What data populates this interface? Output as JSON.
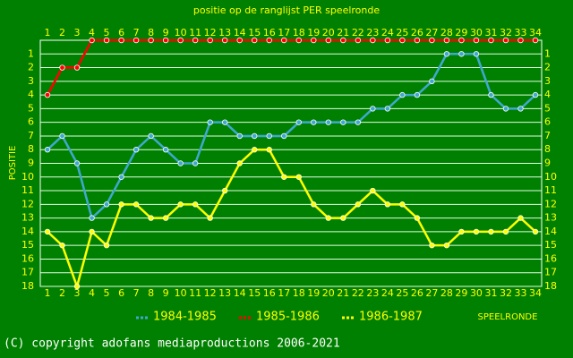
{
  "chart_data": {
    "type": "line",
    "title": "positie op de ranglijst PER speelronde",
    "xlabel": "SPEELRONDE",
    "ylabel": "POSITIE",
    "x": [
      1,
      2,
      3,
      4,
      5,
      6,
      7,
      8,
      9,
      10,
      11,
      12,
      13,
      14,
      15,
      16,
      17,
      18,
      19,
      20,
      21,
      22,
      23,
      24,
      25,
      26,
      27,
      28,
      29,
      30,
      31,
      32,
      33,
      34
    ],
    "xlim": [
      1,
      34
    ],
    "xticks": [
      1,
      2,
      3,
      4,
      5,
      6,
      7,
      8,
      9,
      10,
      11,
      12,
      13,
      14,
      15,
      16,
      17,
      18,
      19,
      20,
      21,
      22,
      23,
      24,
      25,
      26,
      27,
      28,
      29,
      30,
      31,
      32,
      33,
      34
    ],
    "ylim": [
      0,
      18
    ],
    "y_inverted": true,
    "yticks": [
      1,
      2,
      3,
      4,
      5,
      6,
      7,
      8,
      9,
      10,
      11,
      12,
      13,
      14,
      15,
      16,
      17,
      18
    ],
    "grid": true,
    "series": [
      {
        "name": "1984-1985",
        "color": "#40a8d0",
        "values": [
          8,
          7,
          9,
          13,
          12,
          10,
          8,
          7,
          8,
          9,
          9,
          6,
          6,
          7,
          7,
          7,
          7,
          6,
          6,
          6,
          6,
          6,
          5,
          5,
          4,
          4,
          3,
          1,
          1,
          1,
          4,
          5,
          5,
          4
        ]
      },
      {
        "name": "1985-1986",
        "color": "#ff0000",
        "values": [
          4,
          2,
          2,
          0,
          0,
          0,
          0,
          0,
          0,
          0,
          0,
          0,
          0,
          0,
          0,
          0,
          0,
          0,
          0,
          0,
          0,
          0,
          0,
          0,
          0,
          0,
          0,
          0,
          0,
          0,
          0,
          0,
          0,
          0
        ]
      },
      {
        "name": "1986-1987",
        "color": "#ffff00",
        "values": [
          14,
          15,
          18,
          14,
          15,
          12,
          12,
          13,
          13,
          12,
          12,
          13,
          11,
          9,
          8,
          8,
          10,
          10,
          12,
          13,
          13,
          12,
          11,
          12,
          12,
          13,
          15,
          15,
          14,
          14,
          14,
          14,
          13,
          14
        ]
      }
    ],
    "footer": "(C) copyright adofans mediaproductions 2006-2021"
  }
}
